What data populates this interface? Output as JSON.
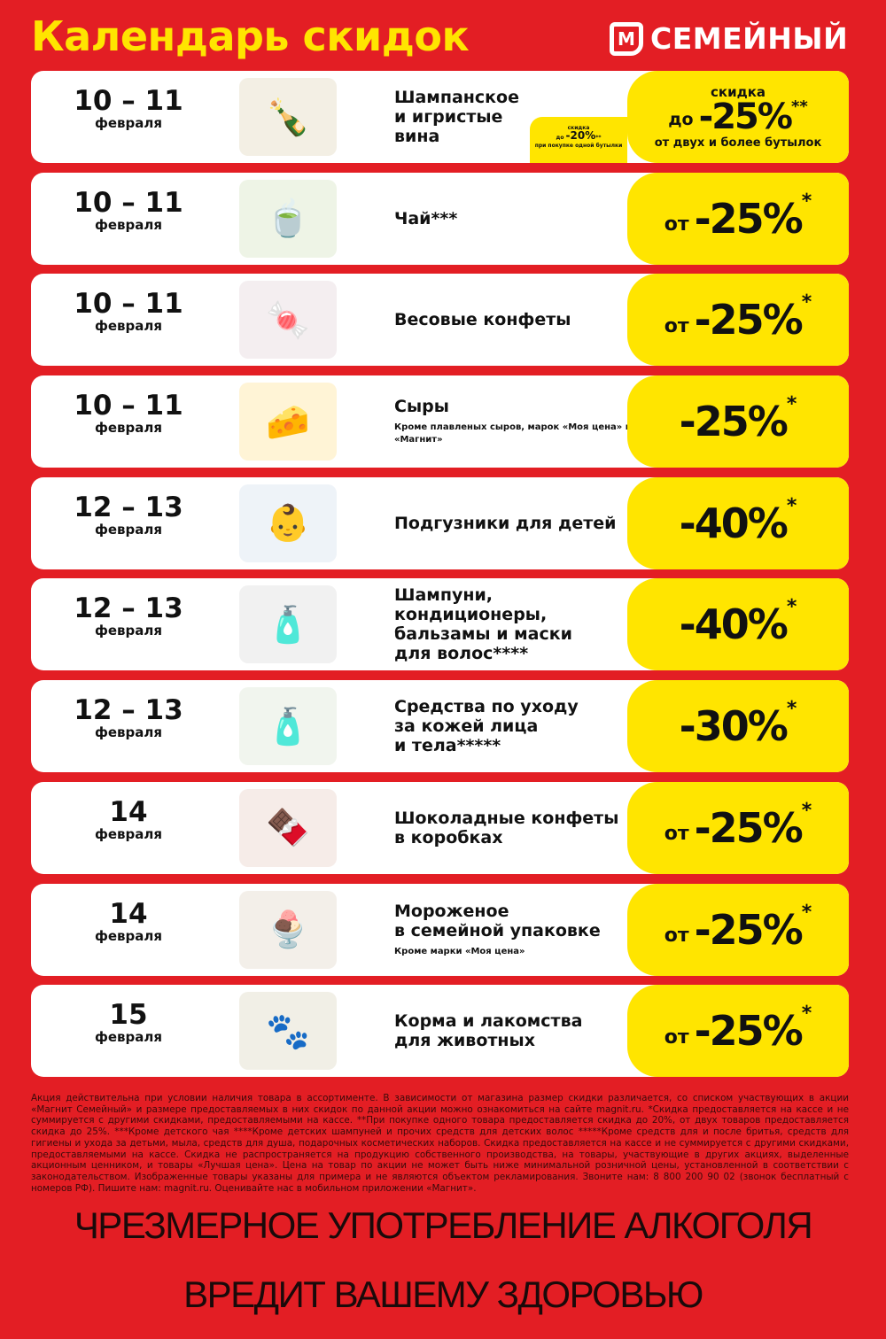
{
  "header": {
    "title": "Календарь скидок",
    "logo_mark": "М",
    "logo_text": "СЕМЕЙНЫЙ"
  },
  "colors": {
    "background": "#e31e24",
    "accent": "#ffe500",
    "card": "#ffffff"
  },
  "rows": [
    {
      "date": "10 – 11",
      "month": "февраля",
      "name": "Шампанское\nи игристые\nвина",
      "note": "",
      "icon": "champagne-bottles",
      "img": "🍾",
      "badge": {
        "top": "скидка",
        "pre": "до",
        "value": "-25%",
        "star": "**",
        "bottom": "от двух и более бутылок"
      },
      "mini": {
        "top": "скидка",
        "pre": "до",
        "value": "-20%",
        "star": "**",
        "bottom": "при покупке одной бутылки"
      }
    },
    {
      "date": "10 – 11",
      "month": "февраля",
      "name": "Чай***",
      "note": "",
      "icon": "tea",
      "img": "🍵",
      "badge": {
        "pre": "от",
        "value": "-25%",
        "star": "*"
      }
    },
    {
      "date": "10 – 11",
      "month": "февраля",
      "name": "Весовые конфеты",
      "note": "",
      "icon": "candies",
      "img": "🍬",
      "badge": {
        "pre": "от",
        "value": "-25%",
        "star": "*"
      }
    },
    {
      "date": "10 – 11",
      "month": "февраля",
      "name": "Сыры",
      "note": "Кроме плавленых сыров, марок «Моя цена» и «Магнит»",
      "icon": "cheese",
      "img": "🧀",
      "badge": {
        "pre": "",
        "value": "-25%",
        "star": "*"
      }
    },
    {
      "date": "12 – 13",
      "month": "февраля",
      "name": "Подгузники для детей",
      "note": "",
      "icon": "diapers",
      "img": "👶",
      "badge": {
        "pre": "",
        "value": "-40%",
        "star": "*"
      }
    },
    {
      "date": "12 – 13",
      "month": "февраля",
      "name": "Шампуни,\nкондиционеры,\nбальзамы и маски\nдля волос****",
      "note": "",
      "icon": "shampoo",
      "img": "🧴",
      "badge": {
        "pre": "",
        "value": "-40%",
        "star": "*"
      }
    },
    {
      "date": "12 – 13",
      "month": "февраля",
      "name": "Средства по уходу\nза кожей лица\nи тела*****",
      "note": "",
      "icon": "skincare",
      "img": "🧴",
      "badge": {
        "pre": "",
        "value": "-30%",
        "star": "*"
      }
    },
    {
      "date": "14",
      "month": "февраля",
      "name": "Шоколадные конфеты\nв коробках",
      "note": "",
      "icon": "chocolate-box",
      "img": "🍫",
      "badge": {
        "pre": "от",
        "value": "-25%",
        "star": "*"
      }
    },
    {
      "date": "14",
      "month": "февраля",
      "name": "Мороженое\nв семейной упаковке",
      "note": "Кроме марки «Моя цена»",
      "icon": "ice-cream",
      "img": "🍨",
      "badge": {
        "pre": "от",
        "value": "-25%",
        "star": "*"
      }
    },
    {
      "date": "15",
      "month": "февраля",
      "name": "Корма и лакомства\nдля животных",
      "note": "",
      "icon": "pet-food",
      "img": "🐾",
      "badge": {
        "pre": "от",
        "value": "-25%",
        "star": "*"
      }
    }
  ],
  "legal": "Акция действительна при условии наличия товара в ассортименте. В зависимости от магазина размер скидки различается, со списком участвующих в акции «Магнит Семейный» и размере предоставляемых в них скидок по данной акции можно ознакомиться на сайте magnit.ru. *Скидка предоставляется на кассе и не суммируется с другими скидками, предоставляемыми на кассе. **При покупке одного товара предоставляется скидка до 20%, от двух товаров предоставляется скидка до 25%. ***Кроме детского чая ****Кроме детских шампуней и прочих средств для детских волос *****Кроме средств для и после бритья, средств для гигиены и ухода за детьми, мыла, средств для душа, подарочных косметических наборов. Скидка предоставляется на кассе и не суммируется с другими скидками, предоставляемыми на кассе. Скидка не распространяется на продукцию собственного производства, на товары, участвующие в других акциях, выделенные акционным ценником, и товары «Лучшая цена». Цена на товар по акции не может быть ниже минимальной розничной цены, установленной в соответствии с законодательством. Изображенные товары указаны для примера и не являются объектом рекламирования. Звоните нам: 8 800 200 90 02 (звонок бесплатный с номеров РФ). Пишите нам: magnit.ru. Оценивайте нас в мобильном приложении «Магнит».",
  "warning": {
    "line1": "ЧРЕЗМЕРНОЕ УПОТРЕБЛЕНИЕ АЛКОГОЛЯ",
    "line2": "ВРЕДИТ ВАШЕМУ ЗДОРОВЬЮ"
  }
}
